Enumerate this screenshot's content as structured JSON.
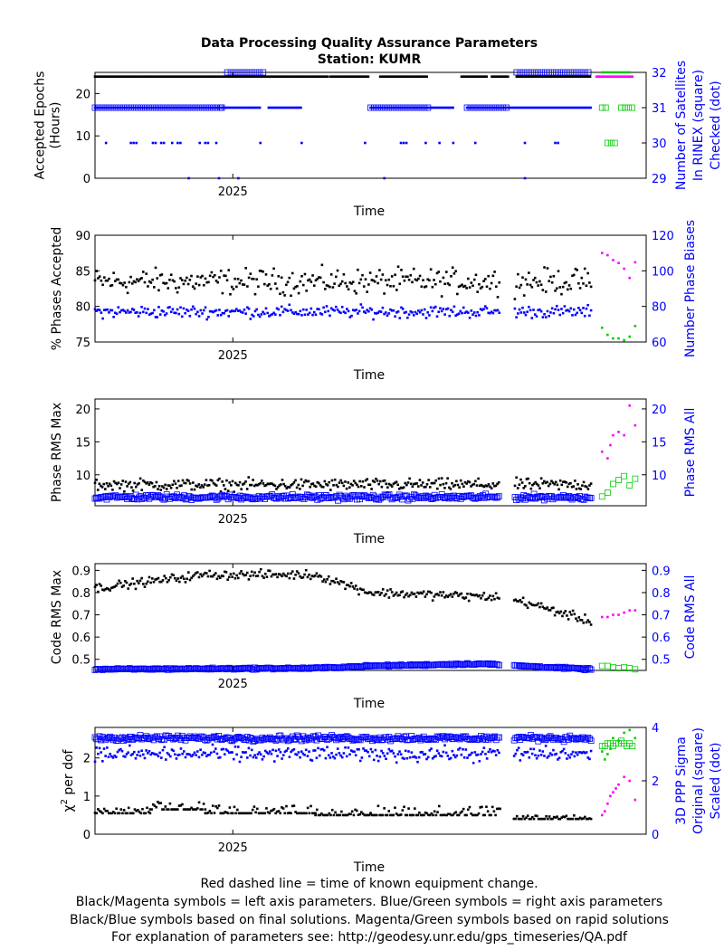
{
  "figure": {
    "title_line1": "Data Processing Quality Assurance Parameters",
    "title_line2": "Station: KUMR",
    "footer": [
      "Red dashed line = time of known equipment change.",
      "Black/Magenta symbols = left axis parameters. Blue/Green symbols = right axis parameters",
      "Black/Blue symbols based on final solutions.  Magenta/Green symbols based on rapid solutions",
      "For explanation of parameters see: http://geodesy.unr.edu/gps_timeseries/QA.pdf"
    ]
  },
  "colors": {
    "final_left": "#000000",
    "final_right": "#0000ff",
    "rapid_left": "#ff00ff",
    "rapid_right": "#00cc00",
    "right_axis": "#0000ff",
    "left_axis": "#000000"
  },
  "chart_data": [
    {
      "type": "scatter",
      "xlabel": "Time",
      "x_tick_labels": [
        "2025"
      ],
      "ylabel_left": [
        "Accepted Epochs",
        "(Hours)"
      ],
      "ylim_left": [
        0,
        25
      ],
      "yticks_left": [
        0,
        10,
        20
      ],
      "ylabel_right": [
        "Number of Satellites",
        "In RINEX (square)",
        "Checked (dot)"
      ],
      "ylim_right": [
        29,
        32
      ],
      "yticks_right": [
        29,
        30,
        31,
        32
      ],
      "series": [
        {
          "name": "Accepted Epochs",
          "axis": "left",
          "source": "final",
          "marker": "dot",
          "segments": [
            [
              0.0,
              0.845,
              24.0
            ],
            [
              0.855,
              0.995,
              24.0
            ],
            [
              1.035,
              1.21,
              24.0
            ],
            [
              1.33,
              1.425,
              24.0
            ],
            [
              1.44,
              1.5,
              24.0
            ],
            [
              1.53,
              1.8,
              24.0
            ]
          ]
        },
        {
          "name": "Accepted Epochs",
          "axis": "left",
          "source": "rapid",
          "marker": "dot",
          "segments": [
            [
              1.82,
              1.95,
              24.0
            ]
          ]
        },
        {
          "name": "Satellites In RINEX",
          "axis": "right",
          "source": "final",
          "marker": "square",
          "segments": [
            [
              0.0,
              0.46,
              31.0
            ],
            [
              0.46,
              0.47,
              31.0
            ],
            [
              0.48,
              0.62,
              32.0
            ],
            [
              1.0,
              1.22,
              31.0
            ],
            [
              1.53,
              1.8,
              32.0
            ],
            [
              1.35,
              1.5,
              31.0
            ]
          ]
        },
        {
          "name": "Satellites In RINEX",
          "axis": "right",
          "source": "rapid",
          "marker": "square",
          "segments": [
            [
              1.84,
              1.86,
              31.0
            ],
            [
              1.86,
              1.89,
              30.0
            ],
            [
              1.91,
              1.95,
              31.0
            ]
          ]
        },
        {
          "name": "Satellites Checked",
          "axis": "right",
          "source": "final",
          "marker": "dot",
          "segments": [
            [
              0.0,
              0.6,
              31.0
            ],
            [
              0.63,
              0.75,
              31.0
            ],
            [
              1.0,
              1.3,
              31.0
            ],
            [
              1.35,
              1.8,
              31.0
            ]
          ],
          "x": [
            0.04,
            0.13,
            0.14,
            0.15,
            0.21,
            0.22,
            0.24,
            0.25,
            0.28,
            0.3,
            0.31,
            0.38,
            0.4,
            0.41,
            0.44,
            0.6,
            0.75,
            0.98,
            1.11,
            1.12,
            1.13,
            1.2,
            1.25,
            1.3,
            1.38,
            1.56,
            1.67,
            1.68,
            0.34,
            0.45,
            0.52,
            1.05,
            1.56
          ],
          "y": [
            30,
            30,
            30,
            30,
            30,
            30,
            30,
            30,
            30,
            30,
            30,
            30,
            30,
            30,
            30,
            30,
            30,
            30,
            30,
            30,
            30,
            30,
            30,
            30,
            30,
            30,
            30,
            30,
            29,
            29,
            29,
            29,
            29
          ]
        },
        {
          "name": "Satellites Checked",
          "axis": "right",
          "source": "rapid",
          "marker": "dot",
          "x": [
            1.84,
            1.85,
            1.86,
            1.87,
            1.88,
            1.89,
            1.9,
            1.91,
            1.92,
            1.93,
            1.94
          ],
          "y": [
            32,
            32,
            32,
            32,
            32,
            32,
            32,
            32,
            32,
            32,
            32
          ]
        }
      ]
    },
    {
      "type": "scatter",
      "xlabel": "Time",
      "x_tick_labels": [
        "2025"
      ],
      "ylabel_left": [
        "% Phases Accepted"
      ],
      "ylim_left": [
        75,
        90
      ],
      "yticks_left": [
        75,
        80,
        85,
        90
      ],
      "ylabel_right": [
        "Number Phase Biases"
      ],
      "ylim_right": [
        60,
        120
      ],
      "yticks_right": [
        60,
        80,
        100,
        120
      ],
      "series": [
        {
          "name": "% Phases Accepted",
          "axis": "left",
          "source": "final",
          "marker": "dot",
          "x_range": [
            0.0,
            1.8
          ],
          "gap": [
            1.47,
            1.52
          ],
          "mean": 83.5,
          "spread": 2.6,
          "n": 320
        },
        {
          "name": "% Phases Accepted",
          "axis": "left",
          "source": "rapid",
          "marker": "dot",
          "x": [
            1.84,
            1.86,
            1.88,
            1.9,
            1.92,
            1.94,
            1.96
          ],
          "y": [
            87.5,
            87.2,
            86.5,
            86.1,
            85.3,
            84.0,
            86.2
          ]
        },
        {
          "name": "Number Phase Biases",
          "axis": "right",
          "source": "final",
          "marker": "dot",
          "x_range": [
            0.0,
            1.8
          ],
          "gap": [
            1.47,
            1.52
          ],
          "mean": 77,
          "spread": 5,
          "n": 320
        },
        {
          "name": "Number Phase Biases",
          "axis": "right",
          "source": "rapid",
          "marker": "dot",
          "x": [
            1.84,
            1.86,
            1.88,
            1.9,
            1.92,
            1.94,
            1.96
          ],
          "y": [
            68,
            64,
            62,
            62,
            61,
            63,
            69
          ]
        }
      ]
    },
    {
      "type": "scatter",
      "xlabel": "Time",
      "x_tick_labels": [
        "2025"
      ],
      "ylabel_left": [
        "Phase RMS Max"
      ],
      "ylim_left": [
        5.3,
        21.5
      ],
      "yticks_left": [
        10,
        15,
        20
      ],
      "ylabel_right": [
        "Phase RMS All"
      ],
      "ylim_right": [
        5.3,
        21.5
      ],
      "yticks_right": [
        10,
        15,
        20
      ],
      "series": [
        {
          "name": "Phase RMS Max",
          "axis": "left",
          "source": "final",
          "marker": "dot",
          "x_range": [
            0.0,
            1.8
          ],
          "gap": [
            1.47,
            1.52
          ],
          "mean": 8.5,
          "spread": 1.3,
          "n": 340
        },
        {
          "name": "Phase RMS Max",
          "axis": "left",
          "source": "rapid",
          "marker": "dot",
          "x": [
            1.84,
            1.86,
            1.87,
            1.88,
            1.9,
            1.92,
            1.94,
            1.96
          ],
          "y": [
            13.5,
            12.5,
            14.5,
            16.0,
            16.5,
            16.0,
            20.5,
            17.5
          ]
        },
        {
          "name": "Phase RMS All",
          "axis": "right",
          "source": "final",
          "marker": "square",
          "x_range": [
            0.0,
            1.8
          ],
          "gap": [
            1.47,
            1.52
          ],
          "mean": 6.6,
          "spread": 0.6,
          "n": 340
        },
        {
          "name": "Phase RMS All",
          "axis": "right",
          "source": "rapid",
          "marker": "square",
          "x": [
            1.84,
            1.86,
            1.88,
            1.9,
            1.92,
            1.94,
            1.96
          ],
          "y": [
            6.7,
            7.3,
            8.6,
            9.2,
            9.8,
            8.4,
            9.4
          ]
        }
      ]
    },
    {
      "type": "scatter",
      "xlabel": "Time",
      "x_tick_labels": [
        "2025"
      ],
      "ylabel_left": [
        "Code RMS Max"
      ],
      "ylim_left": [
        0.45,
        0.93
      ],
      "yticks_left": [
        0.5,
        0.6,
        0.7,
        0.8,
        0.9
      ],
      "ylabel_right": [
        "Code RMS All"
      ],
      "ylim_right": [
        0.45,
        0.93
      ],
      "yticks_right": [
        0.5,
        0.6,
        0.7,
        0.8,
        0.9
      ],
      "series": [
        {
          "name": "Code RMS Max",
          "axis": "left",
          "source": "final",
          "marker": "dot",
          "x_range": [
            0.0,
            1.8
          ],
          "gap": [
            1.47,
            1.52
          ],
          "trend": [
            [
              0.0,
              0.82
            ],
            [
              0.4,
              0.88
            ],
            [
              0.8,
              0.88
            ],
            [
              1.0,
              0.8
            ],
            [
              1.45,
              0.78
            ],
            [
              1.55,
              0.76
            ],
            [
              1.8,
              0.67
            ]
          ],
          "spread": 0.03,
          "n": 330
        },
        {
          "name": "Code RMS Max",
          "axis": "left",
          "source": "rapid",
          "marker": "dot",
          "x": [
            1.84,
            1.86,
            1.88,
            1.9,
            1.92,
            1.94,
            1.96
          ],
          "y": [
            0.69,
            0.69,
            0.7,
            0.7,
            0.71,
            0.72,
            0.72
          ]
        },
        {
          "name": "Code RMS All",
          "axis": "right",
          "source": "final",
          "marker": "square",
          "x_range": [
            0.0,
            1.8
          ],
          "gap": [
            1.47,
            1.52
          ],
          "trend": [
            [
              0.0,
              0.455
            ],
            [
              0.8,
              0.46
            ],
            [
              1.0,
              0.47
            ],
            [
              1.4,
              0.48
            ],
            [
              1.55,
              0.47
            ],
            [
              1.8,
              0.455
            ]
          ],
          "spread": 0.006,
          "n": 330
        },
        {
          "name": "Code RMS All",
          "axis": "right",
          "source": "rapid",
          "marker": "square",
          "x": [
            1.84,
            1.86,
            1.88,
            1.9,
            1.92,
            1.94,
            1.96
          ],
          "y": [
            0.47,
            0.47,
            0.465,
            0.46,
            0.465,
            0.46,
            0.455
          ]
        }
      ]
    },
    {
      "type": "scatter",
      "xlabel": "Time",
      "x_tick_labels": [
        "2025"
      ],
      "ylabel_left_prefix": "χ",
      "ylabel_left_sup": "2",
      "ylabel_left_suffix": " per dof",
      "ylim_left": [
        0,
        2.8
      ],
      "yticks_left": [
        0,
        1,
        2
      ],
      "ylabel_right": [
        "3D PPP Sigma",
        "Original (square)",
        "Scaled (dot)"
      ],
      "ylim_right": [
        0,
        4
      ],
      "yticks_right": [
        0,
        2,
        4
      ],
      "series": [
        {
          "name": "χ2 per dof",
          "axis": "left",
          "source": "final",
          "marker": "dot",
          "levels": [
            [
              0.0,
              0.2,
              0.55,
              0.7
            ],
            [
              0.2,
              0.4,
              0.65,
              0.85
            ],
            [
              0.4,
              0.8,
              0.55,
              0.75
            ],
            [
              0.8,
              1.0,
              0.5,
              0.65
            ],
            [
              1.0,
              1.47,
              0.5,
              0.75
            ],
            [
              1.52,
              1.8,
              0.4,
              0.5
            ]
          ],
          "n": 330
        },
        {
          "name": "χ2 per dof",
          "axis": "left",
          "source": "rapid",
          "marker": "dot",
          "x": [
            1.84,
            1.85,
            1.86,
            1.87,
            1.88,
            1.89,
            1.9,
            1.92,
            1.94,
            1.96
          ],
          "y": [
            0.5,
            0.6,
            0.8,
            1.0,
            1.1,
            1.2,
            1.3,
            1.5,
            1.4,
            0.9
          ]
        },
        {
          "name": "3D PPP Sigma Original",
          "axis": "right",
          "source": "final",
          "marker": "square",
          "x_range": [
            0.0,
            1.8
          ],
          "gap": [
            1.47,
            1.52
          ],
          "mean": 3.6,
          "spread": 0.15,
          "n": 330
        },
        {
          "name": "3D PPP Sigma Original",
          "axis": "right",
          "source": "rapid",
          "marker": "square",
          "x": [
            1.84,
            1.85,
            1.86,
            1.87,
            1.88,
            1.89,
            1.9,
            1.91,
            1.92,
            1.93,
            1.94,
            1.95
          ],
          "y": [
            3.3,
            3.3,
            3.4,
            3.4,
            3.3,
            3.4,
            3.4,
            3.5,
            3.4,
            3.3,
            3.4,
            3.3
          ]
        },
        {
          "name": "3D PPP Sigma Scaled",
          "axis": "right",
          "source": "final",
          "marker": "dot",
          "x_range": [
            0.0,
            1.8
          ],
          "gap": [
            1.47,
            1.52
          ],
          "mean": 3.0,
          "spread": 0.4,
          "n": 330
        },
        {
          "name": "3D PPP Sigma Scaled",
          "axis": "right",
          "source": "rapid",
          "marker": "dot",
          "x": [
            1.84,
            1.85,
            1.86,
            1.87,
            1.88,
            1.9,
            1.92,
            1.94,
            1.96
          ],
          "y": [
            3.1,
            2.8,
            3.0,
            3.2,
            3.6,
            3.5,
            3.8,
            3.9,
            3.6
          ]
        }
      ]
    }
  ]
}
